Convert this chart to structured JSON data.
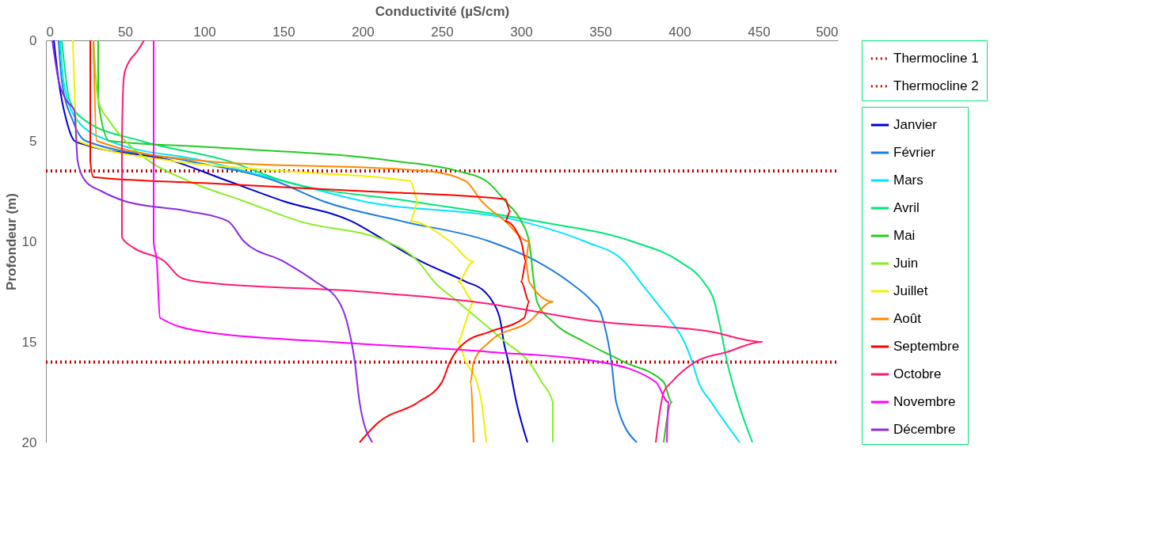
{
  "chart_data": {
    "type": "line",
    "xlabel": "Conductivité (µS/cm)",
    "ylabel": "Profondeur (m)",
    "xlim": [
      0,
      500
    ],
    "xticks": [
      0,
      50,
      100,
      150,
      200,
      250,
      300,
      350,
      400,
      450,
      500
    ],
    "ylim": [
      20,
      0
    ],
    "yticks": [
      0,
      5,
      10,
      15,
      20
    ],
    "grid": false,
    "legend": "right",
    "line_style": "solid",
    "marker": "none",
    "ref_lines": [
      {
        "axis": "y",
        "value": 6.5,
        "label": "Thermocline 1",
        "color": "#c00000",
        "line_style": "dotted"
      },
      {
        "axis": "y",
        "value": 16,
        "label": "Thermocline 2",
        "color": "#c00000",
        "line_style": "dotted"
      }
    ],
    "series": [
      {
        "name": "Janvier",
        "color": "#0000cc",
        "x": [
          5,
          8,
          13,
          18,
          25,
          80,
          115,
          150,
          193,
          215,
          237,
          265,
          277,
          282,
          287,
          289,
          292,
          297,
          304
        ],
        "values": [
          0,
          2,
          4,
          5,
          5.2,
          6,
          7,
          8,
          9,
          10,
          11,
          12,
          12.5,
          13,
          14,
          15,
          16,
          18,
          20
        ]
      },
      {
        "name": "Février",
        "color": "#1e7be0",
        "x": [
          8,
          10,
          17,
          25,
          90,
          145,
          175,
          225,
          280,
          310,
          330,
          345,
          350,
          352,
          357,
          360,
          373
        ],
        "values": [
          0,
          2,
          4,
          5,
          6,
          7,
          8,
          9,
          10,
          11,
          12,
          13,
          13.5,
          14,
          16,
          18,
          20
        ]
      },
      {
        "name": "Mars",
        "color": "#00e5ff",
        "x": [
          9,
          11,
          20,
          40,
          100,
          150,
          200,
          300,
          340,
          365,
          375,
          385,
          395,
          403,
          408,
          412,
          420,
          438
        ],
        "values": [
          0,
          2,
          4,
          5,
          6,
          7,
          8,
          9,
          10,
          11,
          12,
          13,
          14,
          15,
          16,
          17,
          18,
          20
        ]
      },
      {
        "name": "Avril",
        "color": "#00e676",
        "x": [
          10,
          15,
          25,
          60,
          115,
          150,
          230,
          310,
          370,
          400,
          415,
          422,
          425,
          430,
          437,
          446
        ],
        "values": [
          0,
          3,
          4,
          5,
          6,
          7,
          8,
          9,
          10,
          11,
          12,
          13,
          14,
          16,
          18,
          20
        ]
      },
      {
        "name": "Mai",
        "color": "#22cc22",
        "x": [
          33,
          33,
          40,
          100,
          220,
          260,
          278,
          290,
          300,
          305,
          308,
          310,
          320,
          340,
          365,
          390,
          395,
          390
        ],
        "values": [
          0,
          3,
          5,
          5.3,
          6,
          6.5,
          7,
          8,
          9,
          10,
          12,
          13,
          14,
          15,
          16,
          17,
          18,
          20
        ]
      },
      {
        "name": "Juin",
        "color": "#88ee22",
        "x": [
          30,
          33,
          40,
          50,
          65,
          90,
          125,
          160,
          215,
          235,
          245,
          260,
          275,
          290,
          305,
          313,
          320,
          320
        ],
        "values": [
          0,
          3,
          4,
          5,
          6,
          7,
          8,
          9,
          10,
          11,
          12,
          13,
          14,
          15,
          16,
          17,
          18,
          20
        ]
      },
      {
        "name": "Juillet",
        "color": "#f0f000",
        "x": [
          17,
          20,
          80,
          150,
          230,
          235,
          230,
          255,
          270,
          260,
          270,
          265,
          260,
          265,
          272,
          275,
          278
        ],
        "values": [
          0,
          5,
          6,
          6.5,
          7,
          8,
          9,
          10,
          11,
          12,
          13,
          14,
          15,
          16,
          17,
          18,
          20
        ]
      },
      {
        "name": "Août",
        "color": "#ff8800",
        "x": [
          30,
          32,
          100,
          240,
          265,
          275,
          290,
          305,
          303,
          305,
          320,
          305,
          280,
          270,
          268,
          270
        ],
        "values": [
          0,
          5,
          6,
          6.5,
          7,
          8,
          9,
          10,
          11,
          12,
          13,
          14,
          15,
          16,
          17,
          20
        ]
      },
      {
        "name": "Septembre",
        "color": "#ff0000",
        "x": [
          28,
          28,
          30,
          100,
          200,
          290,
          293,
          290,
          300,
          303,
          300,
          305,
          302,
          280,
          265,
          255,
          250,
          235,
          210,
          198
        ],
        "values": [
          0,
          6,
          6.8,
          7.1,
          7.5,
          7.9,
          8.5,
          9,
          10,
          11,
          12,
          13,
          13.8,
          14.5,
          15,
          16,
          17,
          18,
          19,
          20
        ]
      },
      {
        "name": "Octobre",
        "color": "#ff1a75",
        "x": [
          62,
          58,
          50,
          49,
          48,
          48,
          48,
          55,
          75,
          85,
          95,
          200,
          270,
          350,
          420,
          452,
          430,
          410,
          395,
          390,
          385
        ],
        "values": [
          0,
          0.5,
          1.5,
          2,
          5,
          9,
          9.8,
          10.3,
          11,
          11.8,
          12,
          12.5,
          13,
          14,
          14.5,
          15,
          15.5,
          16,
          17,
          17.5,
          20
        ]
      },
      {
        "name": "Novembre",
        "color": "#ff00ff",
        "x": [
          68,
          68,
          70,
          72,
          100,
          180,
          280,
          350,
          385,
          393,
          392
        ],
        "values": [
          0,
          10,
          11,
          13.8,
          14.5,
          15,
          15.5,
          16,
          17,
          18,
          20
        ]
      },
      {
        "name": "Décembre",
        "color": "#8a2be2",
        "x": [
          4,
          8,
          13,
          18,
          20,
          25,
          35,
          50,
          90,
          115,
          125,
          150,
          170,
          185,
          190,
          195,
          198,
          206
        ],
        "values": [
          0,
          2,
          3,
          3.5,
          6,
          7,
          7.5,
          8,
          8.5,
          9,
          10,
          11,
          12,
          13,
          14,
          16,
          18,
          20
        ]
      }
    ]
  }
}
